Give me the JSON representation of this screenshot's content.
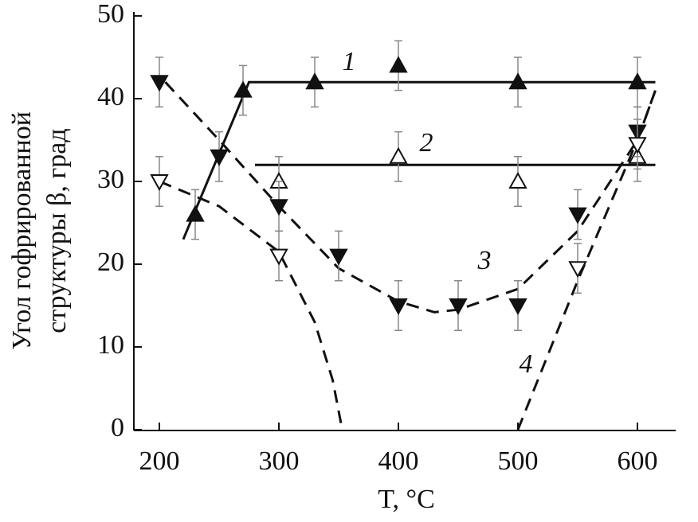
{
  "chart_data": {
    "type": "scatter",
    "x_label": "T, °C",
    "y_label": [
      "Угол гофрированной",
      "структуры β, град"
    ],
    "xlim": [
      180,
      630
    ],
    "ylim": [
      0,
      50
    ],
    "xticks": [
      200,
      300,
      400,
      500,
      600
    ],
    "yticks": [
      0,
      10,
      20,
      30,
      40,
      50
    ],
    "annotations": [
      "1",
      "2",
      "3",
      "4"
    ],
    "series": [
      {
        "marker": "triangle-up",
        "filled": true,
        "color": "#111111",
        "x": [
          230,
          270,
          330,
          400,
          500,
          600
        ],
        "values": [
          26,
          41,
          42,
          44,
          42,
          42
        ],
        "errors": [
          3,
          3,
          3,
          3,
          3,
          3
        ]
      },
      {
        "marker": "triangle-up",
        "filled": false,
        "color": "#111111",
        "x": [
          300,
          400,
          500,
          600
        ],
        "values": [
          30,
          33,
          30,
          33
        ],
        "errors": [
          3,
          3,
          3,
          3
        ]
      },
      {
        "marker": "triangle-down",
        "filled": true,
        "color": "#111111",
        "x": [
          200,
          250,
          300,
          350,
          400,
          450,
          500,
          550,
          600
        ],
        "values": [
          42,
          33,
          27,
          21,
          15,
          15,
          15,
          26,
          36
        ],
        "errors": [
          3,
          3,
          3,
          3,
          3,
          3,
          3,
          3,
          3
        ]
      },
      {
        "marker": "triangle-down",
        "filled": false,
        "color": "#111111",
        "x": [
          200,
          300,
          550,
          600
        ],
        "values": [
          30,
          21,
          19.5,
          34.5
        ],
        "errors": [
          3,
          3,
          3,
          3
        ]
      }
    ],
    "fits": [
      {
        "style": "solid",
        "x": [
          220,
          275,
          615
        ],
        "values": [
          23,
          42,
          42
        ]
      },
      {
        "style": "solid",
        "x": [
          280,
          615
        ],
        "values": [
          32,
          32
        ]
      },
      {
        "style": "dashed",
        "x": [
          205,
          250,
          300,
          350,
          400,
          430,
          450,
          500,
          550,
          600,
          615
        ],
        "values": [
          42,
          35,
          27,
          19.5,
          15.5,
          14.2,
          14.5,
          17,
          24,
          35,
          41
        ]
      },
      {
        "style": "dashed",
        "x": [
          200,
          250,
          300,
          330,
          345,
          353
        ],
        "values": [
          30,
          27,
          21.5,
          13,
          6,
          0
        ]
      },
      {
        "style": "dashed",
        "x": [
          500,
          550,
          600,
          615
        ],
        "values": [
          0,
          18,
          35,
          41
        ]
      }
    ]
  }
}
